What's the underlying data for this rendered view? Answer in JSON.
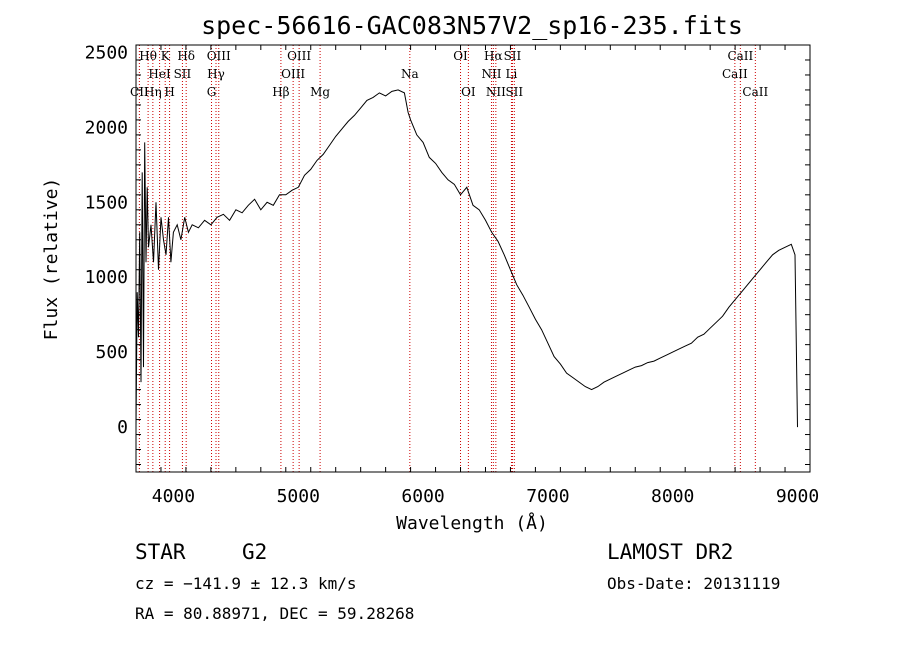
{
  "chart_data": {
    "type": "line",
    "title": "spec-56616-GAC083N57V2_sp16-235.fits",
    "xlabel": "Wavelength (Å)",
    "ylabel": "Flux (relative)",
    "xlim": [
      3700,
      9100
    ],
    "ylim": [
      -300,
      2550
    ],
    "xticks": [
      4000,
      5000,
      6000,
      7000,
      8000,
      9000
    ],
    "yticks": [
      0,
      500,
      1000,
      1500,
      2000,
      2500
    ],
    "grid": false,
    "series": [
      {
        "x": [
          3700,
          3710,
          3720,
          3730,
          3740,
          3750,
          3760,
          3770,
          3780,
          3790,
          3800,
          3820,
          3840,
          3860,
          3880,
          3900,
          3920,
          3940,
          3960,
          3980,
          4000,
          4030,
          4060,
          4090,
          4120,
          4150,
          4200,
          4250,
          4300,
          4350,
          4400,
          4450,
          4500,
          4550,
          4600,
          4650,
          4700,
          4750,
          4800,
          4850,
          4900,
          4950,
          5000,
          5050,
          5100,
          5150,
          5200,
          5250,
          5300,
          5350,
          5400,
          5450,
          5500,
          5550,
          5600,
          5650,
          5700,
          5750,
          5800,
          5850,
          5880,
          5900,
          5950,
          6000,
          6050,
          6100,
          6150,
          6200,
          6250,
          6300,
          6350,
          6400,
          6450,
          6500,
          6550,
          6600,
          6650,
          6700,
          6750,
          6800,
          6850,
          6900,
          6950,
          7000,
          7050,
          7100,
          7150,
          7200,
          7250,
          7300,
          7350,
          7400,
          7450,
          7500,
          7550,
          7600,
          7650,
          7700,
          7750,
          7800,
          7850,
          7900,
          7950,
          8000,
          8050,
          8100,
          8150,
          8200,
          8250,
          8300,
          8350,
          8400,
          8450,
          8500,
          8550,
          8600,
          8650,
          8700,
          8750,
          8800,
          8850,
          8900,
          8950,
          8980,
          9000
        ],
        "y": [
          0,
          900,
          600,
          1300,
          300,
          1700,
          400,
          1900,
          1100,
          1600,
          1200,
          1350,
          1100,
          1500,
          1050,
          1400,
          1250,
          1150,
          1400,
          1100,
          1300,
          1350,
          1250,
          1400,
          1300,
          1350,
          1330,
          1380,
          1350,
          1400,
          1420,
          1380,
          1450,
          1430,
          1480,
          1520,
          1450,
          1500,
          1480,
          1550,
          1550,
          1580,
          1600,
          1680,
          1720,
          1780,
          1820,
          1880,
          1940,
          1990,
          2040,
          2080,
          2130,
          2180,
          2200,
          2230,
          2210,
          2240,
          2250,
          2230,
          2100,
          2050,
          1950,
          1900,
          1800,
          1760,
          1700,
          1650,
          1620,
          1550,
          1600,
          1480,
          1450,
          1380,
          1300,
          1240,
          1150,
          1050,
          950,
          880,
          800,
          720,
          650,
          560,
          470,
          420,
          360,
          330,
          300,
          270,
          250,
          270,
          300,
          320,
          340,
          360,
          380,
          400,
          410,
          430,
          440,
          460,
          480,
          500,
          520,
          540,
          560,
          600,
          620,
          660,
          700,
          740,
          800,
          850,
          900,
          950,
          1000,
          1050,
          1100,
          1150,
          1180,
          1200,
          1220,
          1150,
          0
        ]
      }
    ],
    "lines": [
      {
        "label": "CII",
        "x": 3727,
        "row": 2
      },
      {
        "label": "Hθ",
        "x": 3797,
        "row": 0
      },
      {
        "label": "Hη",
        "x": 3835,
        "row": 2
      },
      {
        "label": "K",
        "x": 3934,
        "row": 0
      },
      {
        "label": "H",
        "x": 3969,
        "row": 2
      },
      {
        "label": "HeI",
        "x": 3889,
        "row": 1
      },
      {
        "label": "SII",
        "x": 4072,
        "row": 1
      },
      {
        "label": "Hδ",
        "x": 4102,
        "row": 0
      },
      {
        "label": "OIII",
        "x": 4363,
        "row": 0
      },
      {
        "label": "Hγ",
        "x": 4341,
        "row": 1
      },
      {
        "label": "G",
        "x": 4305,
        "row": 2
      },
      {
        "label": "Hβ",
        "x": 4861,
        "row": 2
      },
      {
        "label": "OIII",
        "x": 5007,
        "row": 0
      },
      {
        "label": "OIII",
        "x": 4959,
        "row": 1
      },
      {
        "label": "Mg",
        "x": 5175,
        "row": 2
      },
      {
        "label": "Na",
        "x": 5894,
        "row": 1
      },
      {
        "label": "OI",
        "x": 6300,
        "row": 0
      },
      {
        "label": "OI",
        "x": 6363,
        "row": 2
      },
      {
        "label": "Hα",
        "x": 6563,
        "row": 0
      },
      {
        "label": "NII",
        "x": 6548,
        "row": 1
      },
      {
        "label": "NII",
        "x": 6583,
        "row": 2
      },
      {
        "label": "SII",
        "x": 6716,
        "row": 0
      },
      {
        "label": "Li",
        "x": 6708,
        "row": 1
      },
      {
        "label": "SII",
        "x": 6731,
        "row": 2
      },
      {
        "label": "CaII",
        "x": 8542,
        "row": 0
      },
      {
        "label": "CaII",
        "x": 8498,
        "row": 1
      },
      {
        "label": "CaII",
        "x": 8662,
        "row": 2
      }
    ]
  },
  "info": {
    "class": "STAR",
    "subclass": "G2",
    "survey": "LAMOST DR2",
    "cz": "cz = −141.9 ± 12.3 km/s",
    "obsdate": "Obs-Date: 20131119",
    "coords": "RA =  80.88971, DEC =  59.28268"
  },
  "colors": {
    "spectrum": "#000000",
    "line_marker": "#cc0000",
    "axes": "#000000"
  }
}
